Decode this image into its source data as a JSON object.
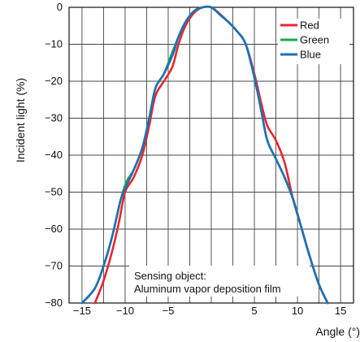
{
  "chart_data": {
    "type": "line",
    "title": "",
    "xlabel": "Angle (°)",
    "ylabel": "Incident light (%)",
    "xlim": [
      -16.5,
      16.5
    ],
    "ylim": [
      -80,
      0
    ],
    "x_ticks": [
      {
        "value": -15,
        "label": "−15"
      },
      {
        "value": -10,
        "label": "−10"
      },
      {
        "value": -5,
        "label": "−5"
      },
      {
        "value": 5,
        "label": "5"
      },
      {
        "value": 10,
        "label": "10"
      },
      {
        "value": 15,
        "label": "15"
      }
    ],
    "y_ticks": [
      {
        "value": 0,
        "label": "0"
      },
      {
        "value": -10,
        "label": "−10"
      },
      {
        "value": -20,
        "label": "−20"
      },
      {
        "value": -30,
        "label": "−30"
      },
      {
        "value": -40,
        "label": "−40"
      },
      {
        "value": -50,
        "label": "−50"
      },
      {
        "value": -60,
        "label": "−60"
      },
      {
        "value": -70,
        "label": "−70"
      },
      {
        "value": -80,
        "label": "−80"
      }
    ],
    "grid": true,
    "legend_position": "top-right",
    "series": [
      {
        "name": "Red",
        "color": "#e8262e",
        "points": [
          [
            -13.5,
            -80
          ],
          [
            -12.5,
            -74
          ],
          [
            -11.5,
            -66
          ],
          [
            -10.7,
            -58
          ],
          [
            -10,
            -50
          ],
          [
            -9,
            -46
          ],
          [
            -8,
            -40
          ],
          [
            -7.2,
            -32
          ],
          [
            -6.5,
            -24
          ],
          [
            -5.5,
            -20
          ],
          [
            -4.5,
            -16
          ],
          [
            -3.8,
            -10
          ],
          [
            -3,
            -5
          ],
          [
            -2,
            -1.5
          ],
          [
            -1,
            0
          ],
          [
            0,
            0
          ],
          [
            1,
            -1.8
          ],
          [
            2,
            -4
          ],
          [
            3,
            -6.5
          ],
          [
            4,
            -10
          ],
          [
            5,
            -18
          ],
          [
            5.8,
            -26
          ],
          [
            6.5,
            -32
          ],
          [
            7.5,
            -36
          ],
          [
            8.5,
            -42
          ],
          [
            9.5,
            -52
          ],
          [
            10.5,
            -60
          ],
          [
            11.5,
            -68
          ],
          [
            12.5,
            -75
          ],
          [
            13.5,
            -80
          ]
        ]
      },
      {
        "name": "Green",
        "color": "#18a84a",
        "points": [
          [
            -15,
            -80
          ],
          [
            -13.5,
            -76
          ],
          [
            -12.5,
            -70
          ],
          [
            -11.5,
            -62
          ],
          [
            -10.5,
            -52
          ],
          [
            -9.8,
            -47
          ],
          [
            -9,
            -44
          ],
          [
            -8,
            -38
          ],
          [
            -7.2,
            -30
          ],
          [
            -6.5,
            -22
          ],
          [
            -5.5,
            -18
          ],
          [
            -4.5,
            -12
          ],
          [
            -3.8,
            -8
          ],
          [
            -3,
            -4
          ],
          [
            -2,
            -1
          ],
          [
            -1,
            0
          ],
          [
            0,
            0
          ],
          [
            1,
            -2
          ],
          [
            2,
            -4
          ],
          [
            3,
            -6.5
          ],
          [
            4,
            -10
          ],
          [
            5,
            -19
          ],
          [
            5.8,
            -28
          ],
          [
            6.5,
            -36
          ],
          [
            7.5,
            -41
          ],
          [
            8.5,
            -46
          ],
          [
            9.5,
            -52
          ],
          [
            10.5,
            -60
          ],
          [
            11.5,
            -68
          ],
          [
            12.5,
            -75
          ],
          [
            13.5,
            -80
          ]
        ]
      },
      {
        "name": "Blue",
        "color": "#1f6fb8",
        "points": [
          [
            -15,
            -80
          ],
          [
            -13.5,
            -76
          ],
          [
            -12.5,
            -70
          ],
          [
            -11.5,
            -62
          ],
          [
            -10.5,
            -52
          ],
          [
            -9.8,
            -48
          ],
          [
            -9,
            -44
          ],
          [
            -8,
            -38
          ],
          [
            -7.2,
            -30
          ],
          [
            -6.5,
            -22
          ],
          [
            -5.5,
            -18
          ],
          [
            -4.5,
            -13
          ],
          [
            -3.8,
            -8
          ],
          [
            -3,
            -4
          ],
          [
            -2,
            -1
          ],
          [
            -1,
            0
          ],
          [
            0,
            0
          ],
          [
            1,
            -2
          ],
          [
            2,
            -4
          ],
          [
            3,
            -6.5
          ],
          [
            4,
            -10
          ],
          [
            5,
            -19
          ],
          [
            5.8,
            -28
          ],
          [
            6.5,
            -36
          ],
          [
            7.5,
            -41
          ],
          [
            8.5,
            -46
          ],
          [
            9.5,
            -52
          ],
          [
            10.5,
            -60
          ],
          [
            11.5,
            -68
          ],
          [
            12.5,
            -75
          ],
          [
            13.5,
            -80
          ]
        ]
      }
    ],
    "annotation": [
      "Sensing object:",
      "Aluminum vapor deposition film"
    ]
  }
}
